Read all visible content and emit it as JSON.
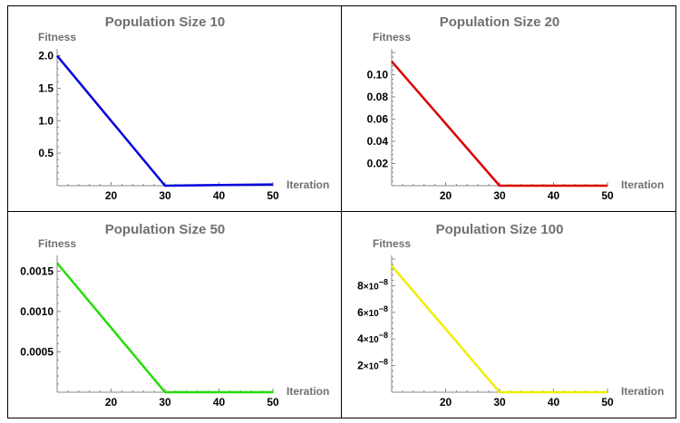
{
  "chart_data": [
    {
      "type": "line",
      "title": "Population Size 10",
      "xlabel": "Iteration",
      "ylabel": "Fitness",
      "color": "#0000dd",
      "xlim": [
        10,
        50
      ],
      "ylim": [
        0,
        2.05
      ],
      "x_ticks": [
        20,
        30,
        40,
        50
      ],
      "y_ticks": [
        0.5,
        1.0,
        1.5,
        2.0
      ],
      "y_tick_labels": [
        "0.5",
        "1.0",
        "1.5",
        "2.0"
      ],
      "series": [
        {
          "x": [
            10,
            30,
            50
          ],
          "y": [
            2.0,
            0.0,
            0.02
          ]
        }
      ]
    },
    {
      "type": "line",
      "title": "Population Size 20",
      "xlabel": "Iteration",
      "ylabel": "Fitness",
      "color": "#dd0000",
      "xlim": [
        10,
        50
      ],
      "ylim": [
        0,
        0.12
      ],
      "x_ticks": [
        20,
        30,
        40,
        50
      ],
      "y_ticks": [
        0.02,
        0.04,
        0.06,
        0.08,
        0.1
      ],
      "y_tick_labels": [
        "0.02",
        "0.04",
        "0.06",
        "0.08",
        "0.10"
      ],
      "series": [
        {
          "x": [
            10,
            30,
            50
          ],
          "y": [
            0.112,
            0.0,
            0.0
          ]
        }
      ]
    },
    {
      "type": "line",
      "title": "Population Size 50",
      "xlabel": "Iteration",
      "ylabel": "Fitness",
      "color": "#22dd00",
      "xlim": [
        10,
        50
      ],
      "ylim": [
        0,
        0.00165
      ],
      "x_ticks": [
        20,
        30,
        40,
        50
      ],
      "y_ticks": [
        0.0005,
        0.001,
        0.0015
      ],
      "y_tick_labels": [
        "0.0005",
        "0.0010",
        "0.0015"
      ],
      "series": [
        {
          "x": [
            10,
            30,
            50
          ],
          "y": [
            0.0016,
            0.0,
            0.0
          ]
        }
      ]
    },
    {
      "type": "line",
      "title": "Population Size 100",
      "xlabel": "Iteration",
      "ylabel": "Fitness",
      "color": "#eeee00",
      "xlim": [
        10,
        50
      ],
      "ylim": [
        0,
        1e-07
      ],
      "x_ticks": [
        20,
        30,
        40,
        50
      ],
      "y_ticks": [
        2e-08,
        4e-08,
        6e-08,
        8e-08
      ],
      "y_tick_labels": [
        {
          "mantissa": "2",
          "base": "×10",
          "exp": "−8"
        },
        {
          "mantissa": "4",
          "base": "×10",
          "exp": "−8"
        },
        {
          "mantissa": "6",
          "base": "×10",
          "exp": "−8"
        },
        {
          "mantissa": "8",
          "base": "×10",
          "exp": "−8"
        }
      ],
      "series": [
        {
          "x": [
            10,
            30,
            50
          ],
          "y": [
            9.5e-08,
            0.0,
            0.0
          ]
        }
      ]
    }
  ]
}
